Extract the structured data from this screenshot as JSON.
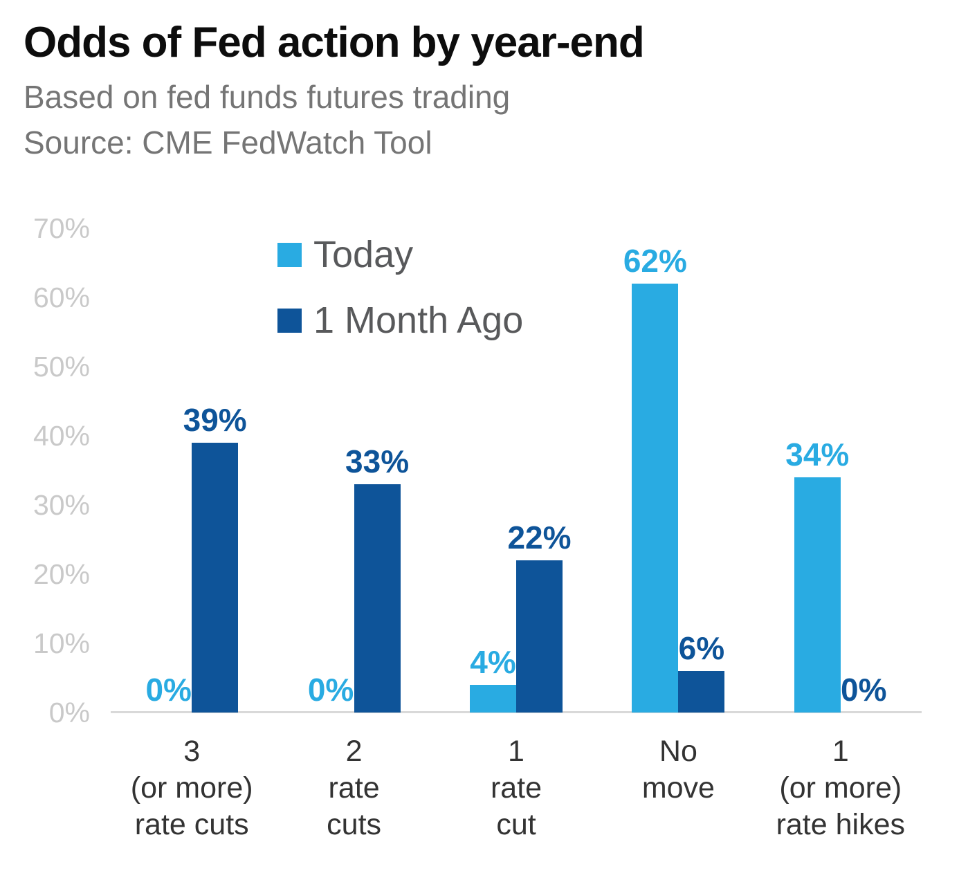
{
  "chart_data": {
    "type": "bar",
    "title": "Odds of Fed action by year-end",
    "subtitle": "Based on fed funds futures trading",
    "source": "Source: CME FedWatch Tool",
    "categories": [
      {
        "id": "3-or-more-rate-cuts",
        "lines": [
          "3",
          "(or more)",
          "rate cuts"
        ]
      },
      {
        "id": "2-rate-cuts",
        "lines": [
          "2",
          "rate",
          "cuts"
        ]
      },
      {
        "id": "1-rate-cut",
        "lines": [
          "1",
          "rate",
          "cut"
        ]
      },
      {
        "id": "no-move",
        "lines": [
          "No",
          "move"
        ]
      },
      {
        "id": "1-or-more-rate-hikes",
        "lines": [
          "1",
          "(or more)",
          "rate hikes"
        ]
      }
    ],
    "series": [
      {
        "name": "Today",
        "color": "#29ABE2",
        "values": [
          0,
          0,
          4,
          62,
          34
        ],
        "labels": [
          "0%",
          "0%",
          "4%",
          "62%",
          "34%"
        ]
      },
      {
        "name": "1 Month Ago",
        "color": "#0E5499",
        "values": [
          39,
          33,
          22,
          6,
          0
        ],
        "labels": [
          "39%",
          "33%",
          "22%",
          "6%",
          "0%"
        ]
      }
    ],
    "y_axis": {
      "ticks": [
        "0%",
        "10%",
        "20%",
        "30%",
        "40%",
        "50%",
        "60%",
        "70%"
      ],
      "min": 0,
      "max": 70,
      "step": 10
    },
    "grid": false,
    "legend_position": "upper-left-inside",
    "colors": {
      "background": "#FFFFFF",
      "title": "#0D0D0D",
      "subtitle": "#757575",
      "tick_label": "#C9C9C9",
      "axis_line": "#D9D9D9",
      "category_label": "#333333",
      "legend_text": "#58595B"
    }
  }
}
